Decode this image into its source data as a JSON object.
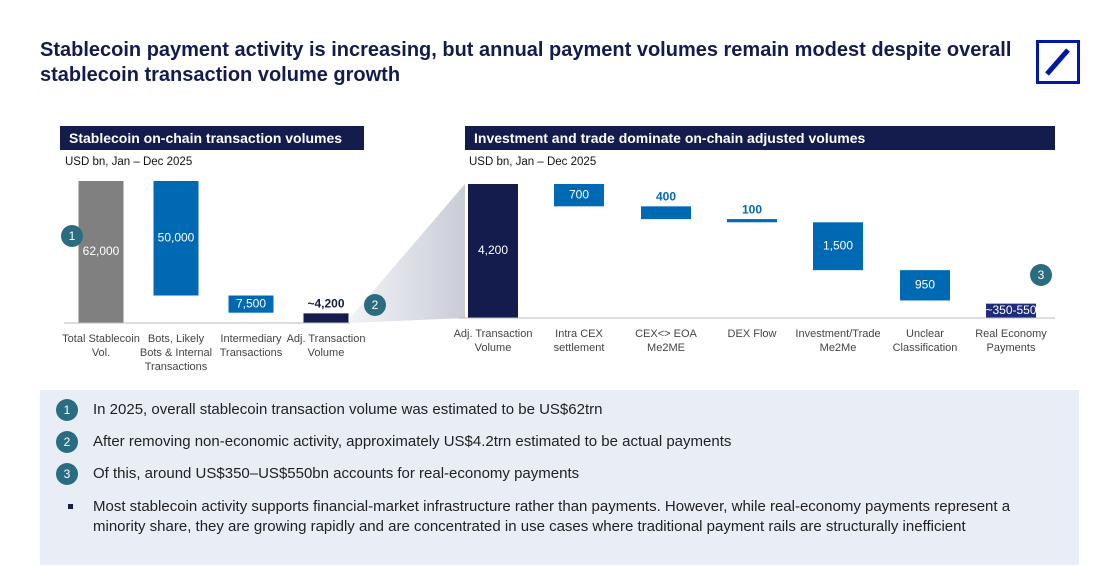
{
  "title": "Stablecoin payment activity is increasing, but annual payment volumes remain modest despite overall stablecoin transaction volume growth",
  "chart_data": [
    {
      "type": "waterfall",
      "title": "Stablecoin on-chain transaction volumes",
      "subtitle": "USD bn, Jan – Dec 2025",
      "categories": [
        "Total Stablecoin Vol.",
        "Bots, Likely Bots & Internal Transactions",
        "Intermediary Transactions",
        "Adj. Transaction Volume"
      ],
      "values": [
        62000,
        50000,
        7500,
        4200
      ],
      "value_labels": [
        "62,000",
        "50,000",
        "7,500",
        "~4,200"
      ],
      "measures": [
        "total",
        "decrease",
        "decrease",
        "total"
      ],
      "colors": [
        "#808080",
        "#0069b4",
        "#0069b4",
        "#141b4d"
      ],
      "ylim": [
        0,
        62000
      ]
    },
    {
      "type": "waterfall",
      "title": "Investment and trade dominate on-chain adjusted volumes",
      "subtitle": "USD bn, Jan – Dec 2025",
      "categories": [
        "Adj. Transaction Volume",
        "Intra CEX settlement",
        "CEX<> EOA Me2ME",
        "DEX Flow",
        "Investment/Trade Me2Me",
        "Unclear Classification",
        "Real Economy Payments"
      ],
      "values": [
        4200,
        700,
        400,
        100,
        1500,
        950,
        450
      ],
      "value_labels": [
        "4,200",
        "700",
        "400",
        "100",
        "1,500",
        "950",
        "~350-550"
      ],
      "measures": [
        "total",
        "decrease",
        "decrease",
        "decrease",
        "decrease",
        "decrease",
        "total"
      ],
      "colors": [
        "#141b4d",
        "#0069b4",
        "#0069b4",
        "#0069b4",
        "#0069b4",
        "#0069b4",
        "#1e2c7a"
      ],
      "ylim": [
        0,
        4200
      ]
    }
  ],
  "notes": [
    {
      "marker": "1",
      "text": "In 2025, overall stablecoin transaction volume was estimated to be US$62trn"
    },
    {
      "marker": "2",
      "text": "After removing non-economic activity, approximately US$4.2trn estimated to be actual payments"
    },
    {
      "marker": "3",
      "text": "Of this, around US$350–US$550bn accounts for real-economy payments"
    }
  ],
  "bullet": "Most stablecoin activity supports financial-market infrastructure rather than payments. However, while real-economy payments represent a minority share, they are growing rapidly and are concentrated in use cases where traditional payment rails are structurally inefficient"
}
